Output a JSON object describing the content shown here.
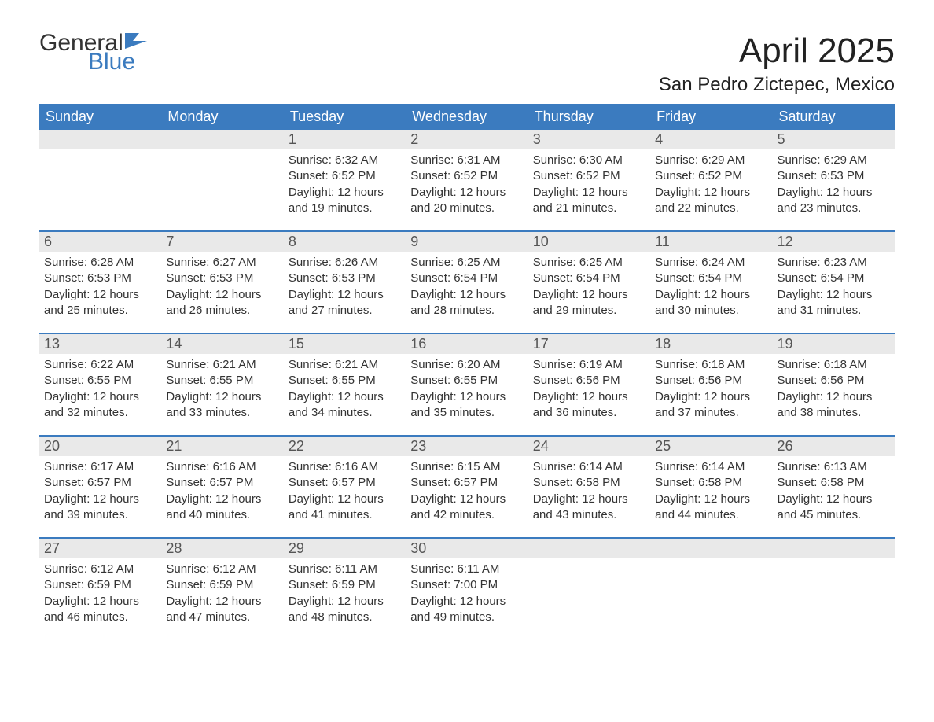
{
  "brand": {
    "word1": "General",
    "word2": "Blue",
    "color_primary": "#3b7bbf"
  },
  "title": "April 2025",
  "location": "San Pedro Zictepec, Mexico",
  "colors": {
    "header_bg": "#3b7bbf",
    "header_text": "#ffffff",
    "daynum_bg": "#e9e9e9",
    "daynum_text": "#555555",
    "week_border": "#3b7bbf",
    "body_text": "#333333",
    "page_bg": "#ffffff"
  },
  "typography": {
    "title_fontsize": 44,
    "location_fontsize": 24,
    "dow_fontsize": 18,
    "daynum_fontsize": 18,
    "body_fontsize": 15
  },
  "days_of_week": [
    "Sunday",
    "Monday",
    "Tuesday",
    "Wednesday",
    "Thursday",
    "Friday",
    "Saturday"
  ],
  "weeks": [
    [
      {
        "n": "",
        "sr": "",
        "ss": "",
        "dl": ""
      },
      {
        "n": "",
        "sr": "",
        "ss": "",
        "dl": ""
      },
      {
        "n": "1",
        "sr": "Sunrise: 6:32 AM",
        "ss": "Sunset: 6:52 PM",
        "dl": "Daylight: 12 hours and 19 minutes."
      },
      {
        "n": "2",
        "sr": "Sunrise: 6:31 AM",
        "ss": "Sunset: 6:52 PM",
        "dl": "Daylight: 12 hours and 20 minutes."
      },
      {
        "n": "3",
        "sr": "Sunrise: 6:30 AM",
        "ss": "Sunset: 6:52 PM",
        "dl": "Daylight: 12 hours and 21 minutes."
      },
      {
        "n": "4",
        "sr": "Sunrise: 6:29 AM",
        "ss": "Sunset: 6:52 PM",
        "dl": "Daylight: 12 hours and 22 minutes."
      },
      {
        "n": "5",
        "sr": "Sunrise: 6:29 AM",
        "ss": "Sunset: 6:53 PM",
        "dl": "Daylight: 12 hours and 23 minutes."
      }
    ],
    [
      {
        "n": "6",
        "sr": "Sunrise: 6:28 AM",
        "ss": "Sunset: 6:53 PM",
        "dl": "Daylight: 12 hours and 25 minutes."
      },
      {
        "n": "7",
        "sr": "Sunrise: 6:27 AM",
        "ss": "Sunset: 6:53 PM",
        "dl": "Daylight: 12 hours and 26 minutes."
      },
      {
        "n": "8",
        "sr": "Sunrise: 6:26 AM",
        "ss": "Sunset: 6:53 PM",
        "dl": "Daylight: 12 hours and 27 minutes."
      },
      {
        "n": "9",
        "sr": "Sunrise: 6:25 AM",
        "ss": "Sunset: 6:54 PM",
        "dl": "Daylight: 12 hours and 28 minutes."
      },
      {
        "n": "10",
        "sr": "Sunrise: 6:25 AM",
        "ss": "Sunset: 6:54 PM",
        "dl": "Daylight: 12 hours and 29 minutes."
      },
      {
        "n": "11",
        "sr": "Sunrise: 6:24 AM",
        "ss": "Sunset: 6:54 PM",
        "dl": "Daylight: 12 hours and 30 minutes."
      },
      {
        "n": "12",
        "sr": "Sunrise: 6:23 AM",
        "ss": "Sunset: 6:54 PM",
        "dl": "Daylight: 12 hours and 31 minutes."
      }
    ],
    [
      {
        "n": "13",
        "sr": "Sunrise: 6:22 AM",
        "ss": "Sunset: 6:55 PM",
        "dl": "Daylight: 12 hours and 32 minutes."
      },
      {
        "n": "14",
        "sr": "Sunrise: 6:21 AM",
        "ss": "Sunset: 6:55 PM",
        "dl": "Daylight: 12 hours and 33 minutes."
      },
      {
        "n": "15",
        "sr": "Sunrise: 6:21 AM",
        "ss": "Sunset: 6:55 PM",
        "dl": "Daylight: 12 hours and 34 minutes."
      },
      {
        "n": "16",
        "sr": "Sunrise: 6:20 AM",
        "ss": "Sunset: 6:55 PM",
        "dl": "Daylight: 12 hours and 35 minutes."
      },
      {
        "n": "17",
        "sr": "Sunrise: 6:19 AM",
        "ss": "Sunset: 6:56 PM",
        "dl": "Daylight: 12 hours and 36 minutes."
      },
      {
        "n": "18",
        "sr": "Sunrise: 6:18 AM",
        "ss": "Sunset: 6:56 PM",
        "dl": "Daylight: 12 hours and 37 minutes."
      },
      {
        "n": "19",
        "sr": "Sunrise: 6:18 AM",
        "ss": "Sunset: 6:56 PM",
        "dl": "Daylight: 12 hours and 38 minutes."
      }
    ],
    [
      {
        "n": "20",
        "sr": "Sunrise: 6:17 AM",
        "ss": "Sunset: 6:57 PM",
        "dl": "Daylight: 12 hours and 39 minutes."
      },
      {
        "n": "21",
        "sr": "Sunrise: 6:16 AM",
        "ss": "Sunset: 6:57 PM",
        "dl": "Daylight: 12 hours and 40 minutes."
      },
      {
        "n": "22",
        "sr": "Sunrise: 6:16 AM",
        "ss": "Sunset: 6:57 PM",
        "dl": "Daylight: 12 hours and 41 minutes."
      },
      {
        "n": "23",
        "sr": "Sunrise: 6:15 AM",
        "ss": "Sunset: 6:57 PM",
        "dl": "Daylight: 12 hours and 42 minutes."
      },
      {
        "n": "24",
        "sr": "Sunrise: 6:14 AM",
        "ss": "Sunset: 6:58 PM",
        "dl": "Daylight: 12 hours and 43 minutes."
      },
      {
        "n": "25",
        "sr": "Sunrise: 6:14 AM",
        "ss": "Sunset: 6:58 PM",
        "dl": "Daylight: 12 hours and 44 minutes."
      },
      {
        "n": "26",
        "sr": "Sunrise: 6:13 AM",
        "ss": "Sunset: 6:58 PM",
        "dl": "Daylight: 12 hours and 45 minutes."
      }
    ],
    [
      {
        "n": "27",
        "sr": "Sunrise: 6:12 AM",
        "ss": "Sunset: 6:59 PM",
        "dl": "Daylight: 12 hours and 46 minutes."
      },
      {
        "n": "28",
        "sr": "Sunrise: 6:12 AM",
        "ss": "Sunset: 6:59 PM",
        "dl": "Daylight: 12 hours and 47 minutes."
      },
      {
        "n": "29",
        "sr": "Sunrise: 6:11 AM",
        "ss": "Sunset: 6:59 PM",
        "dl": "Daylight: 12 hours and 48 minutes."
      },
      {
        "n": "30",
        "sr": "Sunrise: 6:11 AM",
        "ss": "Sunset: 7:00 PM",
        "dl": "Daylight: 12 hours and 49 minutes."
      },
      {
        "n": "",
        "sr": "",
        "ss": "",
        "dl": ""
      },
      {
        "n": "",
        "sr": "",
        "ss": "",
        "dl": ""
      },
      {
        "n": "",
        "sr": "",
        "ss": "",
        "dl": ""
      }
    ]
  ]
}
